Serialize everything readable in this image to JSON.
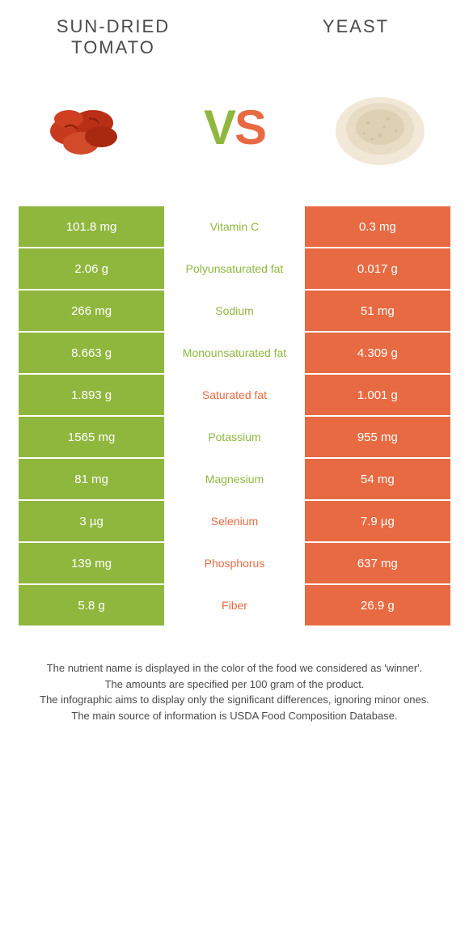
{
  "header": {
    "left_title": "SUN-DRIED TOMATO",
    "right_title": "YEAST"
  },
  "vs": {
    "v": "V",
    "s": "S"
  },
  "colors": {
    "left_bg": "#8fb73e",
    "right_bg": "#e86a42",
    "mid_green": "#8fb73e",
    "mid_orange": "#e86a42"
  },
  "rows": [
    {
      "left": "101.8 mg",
      "label": "Vitamin C",
      "right": "0.3 mg",
      "winner": "left"
    },
    {
      "left": "2.06 g",
      "label": "Polyunsaturated fat",
      "right": "0.017 g",
      "winner": "left"
    },
    {
      "left": "266 mg",
      "label": "Sodium",
      "right": "51 mg",
      "winner": "left"
    },
    {
      "left": "8.663 g",
      "label": "Monounsaturated fat",
      "right": "4.309 g",
      "winner": "left"
    },
    {
      "left": "1.893 g",
      "label": "Saturated fat",
      "right": "1.001 g",
      "winner": "right"
    },
    {
      "left": "1565 mg",
      "label": "Potassium",
      "right": "955 mg",
      "winner": "left"
    },
    {
      "left": "81 mg",
      "label": "Magnesium",
      "right": "54 mg",
      "winner": "left"
    },
    {
      "left": "3 µg",
      "label": "Selenium",
      "right": "7.9 µg",
      "winner": "right"
    },
    {
      "left": "139 mg",
      "label": "Phosphorus",
      "right": "637 mg",
      "winner": "right"
    },
    {
      "left": "5.8 g",
      "label": "Fiber",
      "right": "26.9 g",
      "winner": "right"
    }
  ],
  "footer": {
    "line1": "The nutrient name is displayed in the color of the food we considered as 'winner'.",
    "line2": "The amounts are specified per 100 gram of the product.",
    "line3": "The infographic aims to display only the significant differences, ignoring minor ones.",
    "line4": "The main source of information is USDA Food Composition Database."
  }
}
